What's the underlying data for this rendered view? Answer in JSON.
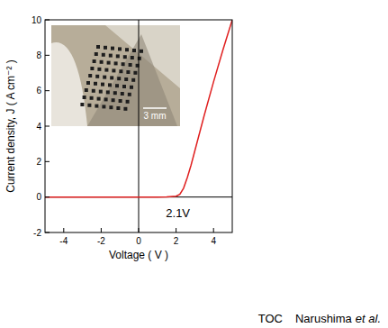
{
  "chart_data": {
    "type": "line",
    "x": [
      -5,
      -4,
      -3,
      -2,
      -1,
      0,
      1,
      1.5,
      2,
      2.2,
      2.4,
      2.6,
      2.8,
      3,
      3.5,
      4,
      4.5,
      5
    ],
    "values": [
      0,
      0,
      0,
      0,
      0,
      0,
      0,
      0.01,
      0.05,
      0.15,
      0.5,
      1.1,
      1.8,
      2.6,
      4.6,
      6.5,
      8.3,
      10.0
    ],
    "color": "#e02020",
    "xlim": [
      -5,
      5
    ],
    "ylim": [
      -2,
      10
    ],
    "xticks": [
      -4,
      -2,
      0,
      2,
      4
    ],
    "yticks": [
      -2,
      0,
      2,
      4,
      6,
      8,
      10
    ],
    "xlabel": "Voltage ( V )",
    "ylabel": "Current density, J ( A cm⁻² )",
    "annotations": [
      "2.1V"
    ],
    "inset_scale_label": "3 mm",
    "caption": [
      "TOC",
      "Narushima",
      "et al."
    ]
  }
}
